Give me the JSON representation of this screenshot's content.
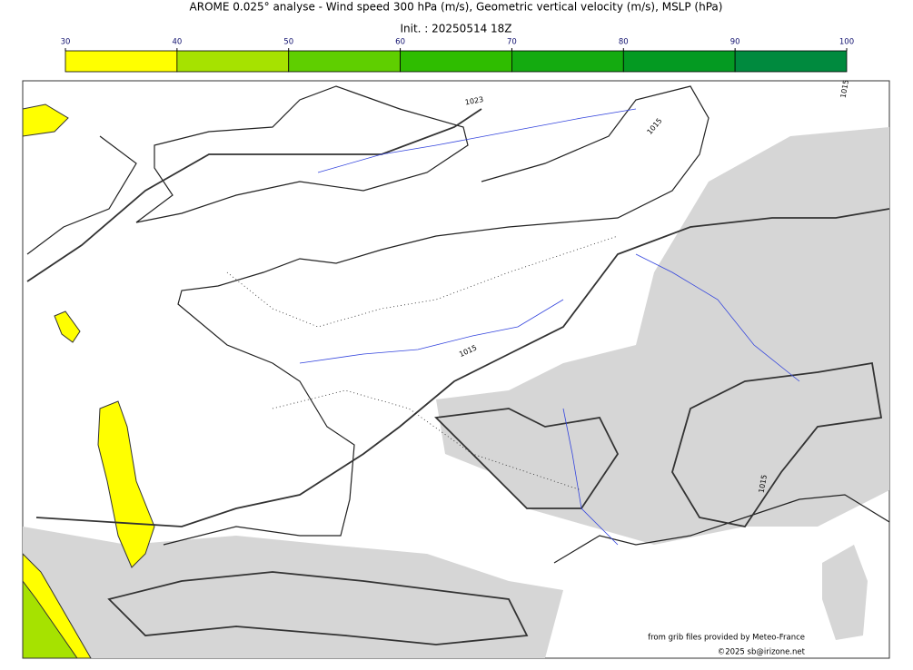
{
  "header": {
    "title": "AROME 0.025° analyse - Wind speed 300 hPa (m/s), Geometric vertical velocity (m/s), MSLP (hPa)",
    "init": "Init. : 20250514 18Z"
  },
  "colorbar": {
    "ticks": [
      30,
      40,
      50,
      60,
      70,
      80,
      90,
      100
    ],
    "colors": [
      "#ffff00",
      "#a6e200",
      "#5fcf00",
      "#2fbd00",
      "#14ab10",
      "#049a22",
      "#008a3e",
      "#06784f"
    ]
  },
  "map": {
    "isobar_labels": [
      "1023",
      "1015",
      "1015",
      "1015",
      "1015"
    ]
  },
  "credits": {
    "source": "from grib files provided by Meteo-France",
    "copyright": "©2025 sb@irizone.net"
  }
}
